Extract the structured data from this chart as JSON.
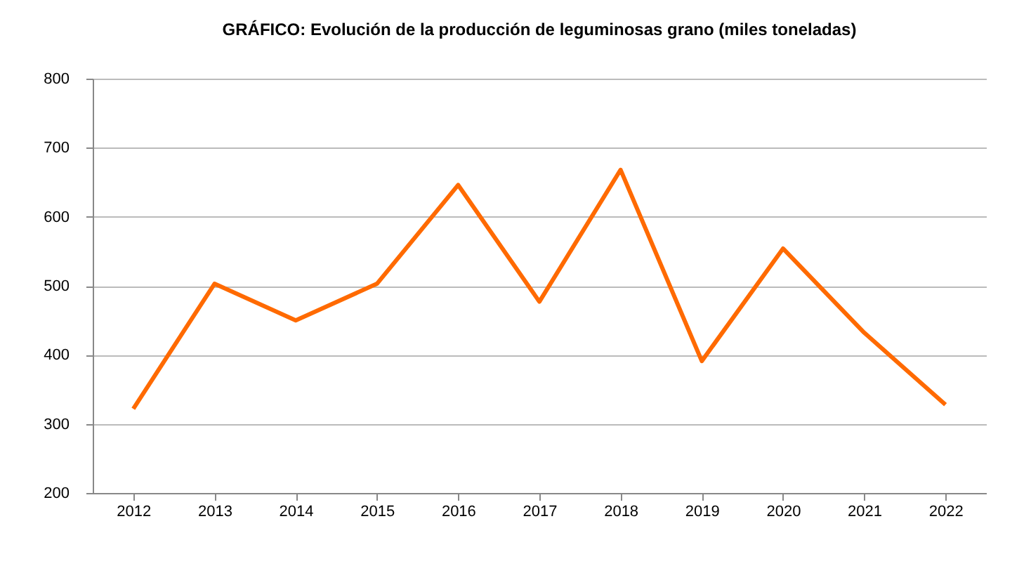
{
  "chart_data": {
    "type": "line",
    "title": "GRÁFICO:  Evolución de la producción de leguminosas grano  (miles toneladas)",
    "categories": [
      "2012",
      "2013",
      "2014",
      "2015",
      "2016",
      "2017",
      "2018",
      "2019",
      "2020",
      "2021",
      "2022"
    ],
    "series": [
      {
        "color": "#ff6a00",
        "values": [
          322,
          503,
          450,
          503,
          646,
          477,
          668,
          391,
          554,
          432,
          328
        ]
      }
    ],
    "ylim": [
      200,
      800
    ],
    "yticks": [
      200,
      300,
      400,
      500,
      600,
      700,
      800
    ],
    "grid": "y",
    "legend": false,
    "marker": "none",
    "line_style": "solid"
  }
}
